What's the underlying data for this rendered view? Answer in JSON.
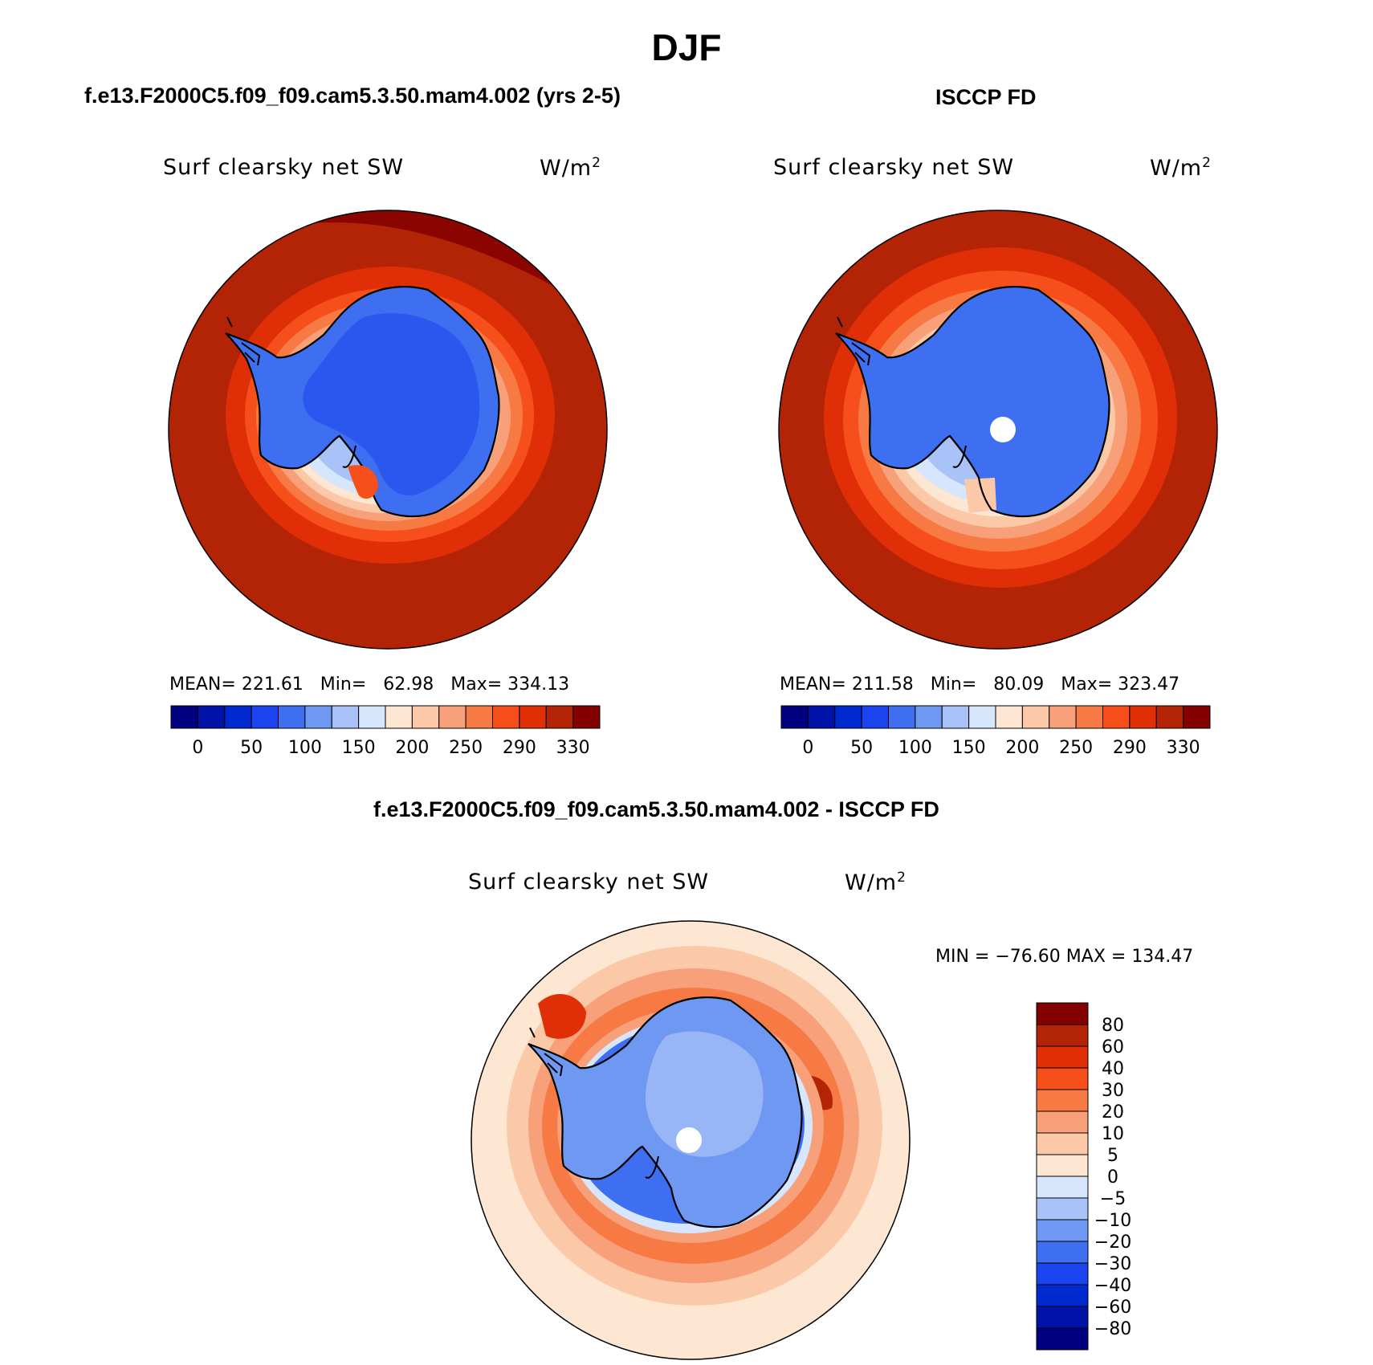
{
  "main_title": "DJF",
  "colors": {
    "ocean_outer": "#b32306",
    "coast_land_line": "#000000",
    "seq_palette": [
      "#000080",
      "#0012a8",
      "#002ad0",
      "#1c44ee",
      "#3e6ff0",
      "#6f98f2",
      "#a9c2f7",
      "#d6e6fc",
      "#fde6d2",
      "#fcc9a8",
      "#f8a07a",
      "#f77a45",
      "#f74f1b",
      "#e02e06",
      "#b32306",
      "#830000"
    ],
    "diff_palette": [
      "#000080",
      "#0012a8",
      "#002ad0",
      "#1c44ee",
      "#3e6ff0",
      "#6f98f2",
      "#a9c2f7",
      "#d6e6fc",
      "#fde6d2",
      "#fcc9a8",
      "#f8a07a",
      "#f77a45",
      "#f74f1b",
      "#e02e06",
      "#b32306",
      "#830000"
    ]
  },
  "chart_data": [
    {
      "id": "model",
      "type": "heatmap",
      "projection": "south-polar-stereographic",
      "case_title": "f.e13.F2000C5.f09_f09.cam5.3.50.mam4.002 (yrs 2-5)",
      "variable": "Surf clearsky net SW",
      "units_base": "W/m",
      "units_exp": "2",
      "stats": {
        "mean_label": "MEAN=",
        "mean": "221.61",
        "min_label": "Min=",
        "min": "62.98",
        "max_label": "Max=",
        "max": "334.13"
      },
      "colorbar": {
        "orientation": "horizontal",
        "levels": [
          0,
          50,
          100,
          150,
          200,
          250,
          290,
          330
        ],
        "n_colors": 16
      }
    },
    {
      "id": "obs",
      "type": "heatmap",
      "projection": "south-polar-stereographic",
      "case_title": "ISCCP FD",
      "variable": "Surf clearsky net SW",
      "units_base": "W/m",
      "units_exp": "2",
      "stats": {
        "mean_label": "MEAN=",
        "mean": "211.58",
        "min_label": "Min=",
        "min": "80.09",
        "max_label": "Max=",
        "max": "323.47"
      },
      "colorbar": {
        "orientation": "horizontal",
        "levels": [
          0,
          50,
          100,
          150,
          200,
          250,
          290,
          330
        ],
        "n_colors": 16
      }
    },
    {
      "id": "diff",
      "type": "heatmap",
      "projection": "south-polar-stereographic",
      "case_title": "f.e13.F2000C5.f09_f09.cam5.3.50.mam4.002 - ISCCP FD",
      "variable": "Surf clearsky net SW",
      "units_base": "W/m",
      "units_exp": "2",
      "stats": {
        "min_label": "MIN =",
        "min": "−76.60",
        "max_label": "MAX =",
        "max": "134.47"
      },
      "colorbar": {
        "orientation": "vertical",
        "levels": [
          80,
          60,
          40,
          30,
          20,
          10,
          5,
          0,
          "−5",
          "−10",
          "−20",
          "−30",
          "−40",
          "−60",
          "−80"
        ],
        "n_colors": 16
      }
    }
  ]
}
